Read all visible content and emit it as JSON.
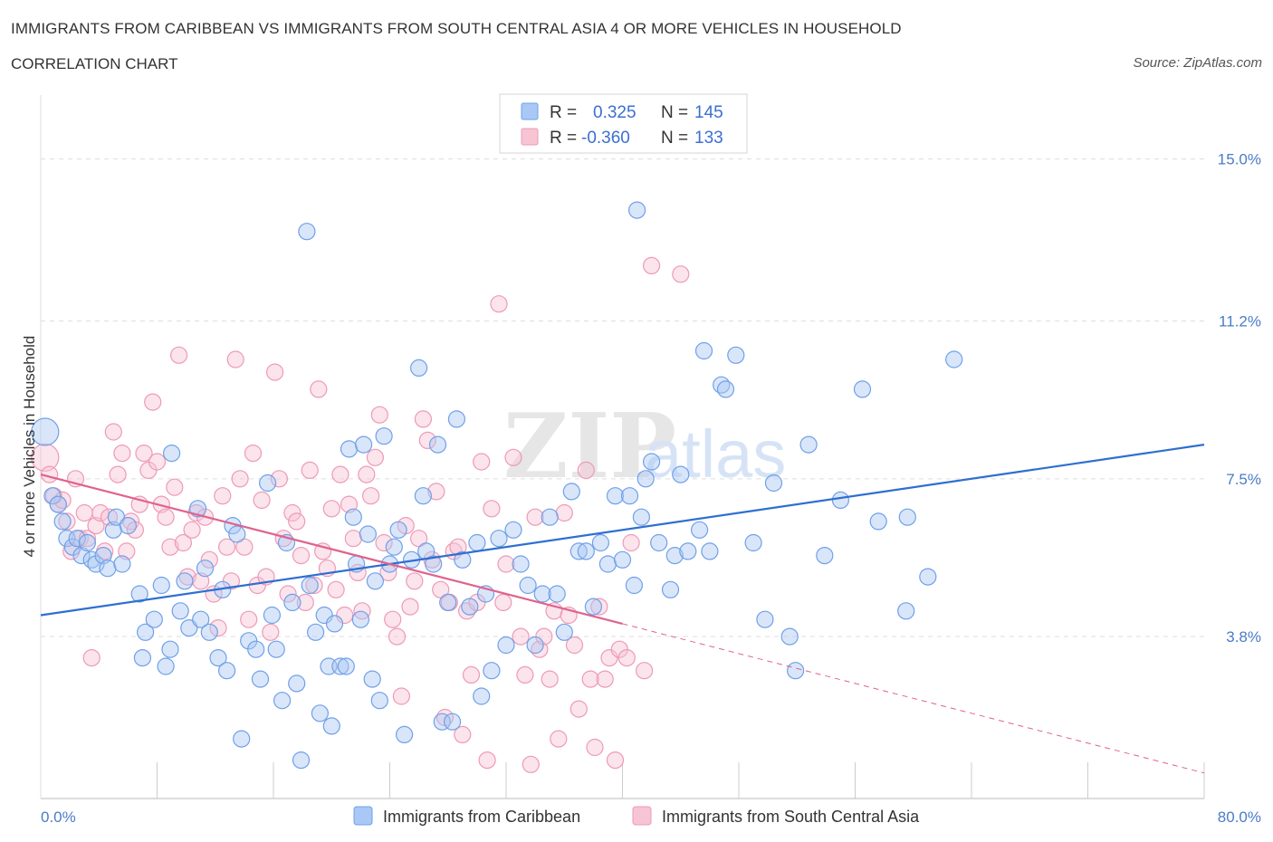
{
  "header": {
    "title": "IMMIGRANTS FROM CARIBBEAN VS IMMIGRANTS FROM SOUTH CENTRAL ASIA 4 OR MORE VEHICLES IN HOUSEHOLD",
    "subtitle": "CORRELATION CHART",
    "source": "Source: ZipAtlas.com"
  },
  "watermark": {
    "zip": "ZIP",
    "atlas": "atlas"
  },
  "legend": {
    "r_label": "R =",
    "n_label": "N =",
    "rows": [
      {
        "r": "0.325",
        "n": "145"
      },
      {
        "r": "-0.360",
        "n": "133"
      }
    ]
  },
  "colors": {
    "blue": "#6fa0e8",
    "blue_fill": "#aac8f5",
    "blue_line": "#2e6fd1",
    "pink": "#ee9ab5",
    "pink_fill": "#f7c4d4",
    "pink_line": "#e0628e",
    "grid": "#dddddd",
    "tick_text": "#4a7cc7"
  },
  "chart_data": {
    "type": "scatter",
    "title": "IMMIGRANTS FROM CARIBBEAN VS IMMIGRANTS FROM SOUTH CENTRAL ASIA 4 OR MORE VEHICLES IN HOUSEHOLD",
    "xlabel": "",
    "ylabel": "4 or more Vehicles in Household",
    "xlim": [
      0,
      80
    ],
    "ylim": [
      0,
      16.5
    ],
    "x_tick_labels": [
      "0.0%",
      "80.0%"
    ],
    "y_ticks": [
      3.8,
      7.5,
      11.2,
      15.0
    ],
    "y_tick_labels": [
      "3.8%",
      "7.5%",
      "11.2%",
      "15.0%"
    ],
    "grid": true,
    "legend_position": "top-center",
    "series": [
      {
        "name": "Immigrants from Caribbean",
        "color": "#6fa0e8",
        "r": 0.325,
        "n": 145,
        "trend": {
          "x0": 0,
          "y0": 4.3,
          "x1": 80,
          "y1": 8.3
        },
        "points": [
          [
            0.3,
            8.6
          ],
          [
            0.8,
            7.1
          ],
          [
            1.2,
            6.9
          ],
          [
            1.5,
            6.5
          ],
          [
            1.8,
            6.1
          ],
          [
            2.2,
            5.9
          ],
          [
            2.5,
            6.1
          ],
          [
            2.8,
            5.7
          ],
          [
            3.2,
            6.0
          ],
          [
            3.5,
            5.6
          ],
          [
            3.8,
            5.5
          ],
          [
            4.3,
            5.7
          ],
          [
            4.6,
            5.4
          ],
          [
            5.0,
            6.3
          ],
          [
            5.2,
            6.6
          ],
          [
            5.6,
            5.5
          ],
          [
            6.0,
            6.4
          ],
          [
            6.8,
            4.8
          ],
          [
            7.2,
            3.9
          ],
          [
            7.0,
            3.3
          ],
          [
            7.8,
            4.2
          ],
          [
            8.3,
            5.0
          ],
          [
            8.6,
            3.1
          ],
          [
            8.9,
            3.5
          ],
          [
            9.0,
            8.1
          ],
          [
            9.6,
            4.4
          ],
          [
            9.9,
            5.1
          ],
          [
            10.2,
            4.0
          ],
          [
            10.8,
            6.8
          ],
          [
            11.0,
            4.2
          ],
          [
            11.3,
            5.4
          ],
          [
            11.6,
            3.9
          ],
          [
            12.2,
            3.3
          ],
          [
            12.5,
            4.9
          ],
          [
            12.8,
            3.0
          ],
          [
            13.2,
            6.4
          ],
          [
            13.5,
            6.2
          ],
          [
            13.8,
            1.4
          ],
          [
            14.3,
            3.7
          ],
          [
            14.8,
            3.5
          ],
          [
            15.1,
            2.8
          ],
          [
            15.6,
            7.4
          ],
          [
            15.9,
            4.3
          ],
          [
            16.2,
            3.5
          ],
          [
            16.6,
            2.3
          ],
          [
            16.9,
            6.0
          ],
          [
            17.3,
            4.6
          ],
          [
            17.6,
            2.7
          ],
          [
            17.9,
            0.9
          ],
          [
            18.3,
            13.3
          ],
          [
            18.5,
            5.0
          ],
          [
            18.9,
            3.9
          ],
          [
            19.2,
            2.0
          ],
          [
            19.5,
            4.3
          ],
          [
            19.8,
            3.1
          ],
          [
            20.0,
            1.7
          ],
          [
            20.2,
            4.1
          ],
          [
            20.6,
            3.1
          ],
          [
            21.0,
            3.1
          ],
          [
            21.2,
            8.2
          ],
          [
            21.5,
            6.6
          ],
          [
            21.7,
            5.5
          ],
          [
            22.0,
            4.2
          ],
          [
            22.2,
            8.3
          ],
          [
            22.5,
            6.2
          ],
          [
            22.8,
            2.8
          ],
          [
            23.0,
            5.1
          ],
          [
            23.3,
            2.3
          ],
          [
            23.6,
            8.5
          ],
          [
            24.0,
            5.5
          ],
          [
            24.3,
            5.9
          ],
          [
            24.6,
            6.3
          ],
          [
            25.0,
            1.5
          ],
          [
            25.5,
            5.6
          ],
          [
            26.0,
            10.1
          ],
          [
            26.3,
            7.1
          ],
          [
            26.5,
            5.8
          ],
          [
            27.0,
            5.5
          ],
          [
            27.3,
            8.3
          ],
          [
            27.6,
            1.8
          ],
          [
            28.0,
            4.6
          ],
          [
            28.3,
            1.8
          ],
          [
            28.6,
            8.9
          ],
          [
            29.0,
            5.6
          ],
          [
            29.5,
            4.5
          ],
          [
            30.0,
            6.0
          ],
          [
            30.3,
            2.4
          ],
          [
            30.6,
            4.8
          ],
          [
            31.0,
            3.0
          ],
          [
            31.5,
            6.1
          ],
          [
            32.0,
            3.6
          ],
          [
            32.5,
            6.3
          ],
          [
            33.0,
            5.5
          ],
          [
            33.5,
            5.0
          ],
          [
            34.0,
            3.6
          ],
          [
            34.5,
            4.8
          ],
          [
            35.0,
            6.6
          ],
          [
            35.5,
            4.8
          ],
          [
            36.0,
            3.9
          ],
          [
            36.5,
            7.2
          ],
          [
            37.0,
            5.8
          ],
          [
            37.5,
            5.8
          ],
          [
            38.0,
            4.5
          ],
          [
            38.5,
            6.0
          ],
          [
            39.0,
            5.5
          ],
          [
            39.5,
            7.1
          ],
          [
            40.0,
            5.6
          ],
          [
            40.5,
            7.1
          ],
          [
            40.8,
            5.0
          ],
          [
            41.0,
            13.8
          ],
          [
            41.3,
            6.6
          ],
          [
            41.6,
            7.5
          ],
          [
            42.0,
            7.9
          ],
          [
            42.5,
            6.0
          ],
          [
            43.3,
            4.9
          ],
          [
            43.6,
            5.7
          ],
          [
            44.0,
            7.6
          ],
          [
            44.5,
            5.8
          ],
          [
            45.3,
            6.3
          ],
          [
            45.6,
            10.5
          ],
          [
            46.0,
            5.8
          ],
          [
            46.8,
            9.7
          ],
          [
            47.1,
            9.6
          ],
          [
            47.8,
            10.4
          ],
          [
            49.0,
            6.0
          ],
          [
            49.8,
            4.2
          ],
          [
            50.4,
            7.4
          ],
          [
            51.5,
            3.8
          ],
          [
            51.9,
            3.0
          ],
          [
            52.8,
            8.3
          ],
          [
            53.9,
            5.7
          ],
          [
            55.0,
            7.0
          ],
          [
            56.5,
            9.6
          ],
          [
            57.6,
            6.5
          ],
          [
            59.6,
            6.6
          ],
          [
            59.5,
            4.4
          ],
          [
            61.0,
            5.2
          ],
          [
            62.8,
            10.3
          ]
        ]
      },
      {
        "name": "Immigrants from South Central Asia",
        "color": "#ee9ab5",
        "r": -0.36,
        "n": 133,
        "trend": {
          "x0": 0,
          "y0": 7.6,
          "x1": 40,
          "y1": 4.1,
          "dashed_to_x": 80,
          "dashed_to_y": 0.6
        },
        "points": [
          [
            0.3,
            8.0
          ],
          [
            0.6,
            7.6
          ],
          [
            0.9,
            7.1
          ],
          [
            1.2,
            6.9
          ],
          [
            1.5,
            7.0
          ],
          [
            1.8,
            6.5
          ],
          [
            2.1,
            5.8
          ],
          [
            2.4,
            7.5
          ],
          [
            2.7,
            6.1
          ],
          [
            3.0,
            6.7
          ],
          [
            3.2,
            6.1
          ],
          [
            3.5,
            3.3
          ],
          [
            3.8,
            6.4
          ],
          [
            4.1,
            6.7
          ],
          [
            4.4,
            5.8
          ],
          [
            4.7,
            6.6
          ],
          [
            5.0,
            8.6
          ],
          [
            5.3,
            7.6
          ],
          [
            5.6,
            8.1
          ],
          [
            5.9,
            5.8
          ],
          [
            6.2,
            6.5
          ],
          [
            6.5,
            6.3
          ],
          [
            6.8,
            6.9
          ],
          [
            7.1,
            8.1
          ],
          [
            7.4,
            7.7
          ],
          [
            7.7,
            9.3
          ],
          [
            8.0,
            7.9
          ],
          [
            8.3,
            6.9
          ],
          [
            8.6,
            6.6
          ],
          [
            8.9,
            5.9
          ],
          [
            9.2,
            7.3
          ],
          [
            9.5,
            10.4
          ],
          [
            9.8,
            6.0
          ],
          [
            10.1,
            5.2
          ],
          [
            10.4,
            6.3
          ],
          [
            10.7,
            6.7
          ],
          [
            11.0,
            5.1
          ],
          [
            11.3,
            6.6
          ],
          [
            11.6,
            5.6
          ],
          [
            11.9,
            4.8
          ],
          [
            12.2,
            4.0
          ],
          [
            12.5,
            7.1
          ],
          [
            12.8,
            5.9
          ],
          [
            13.1,
            5.1
          ],
          [
            13.4,
            10.3
          ],
          [
            13.7,
            7.5
          ],
          [
            14.0,
            5.9
          ],
          [
            14.3,
            4.2
          ],
          [
            14.6,
            8.1
          ],
          [
            14.9,
            5.0
          ],
          [
            15.2,
            7.0
          ],
          [
            15.5,
            5.2
          ],
          [
            15.8,
            3.9
          ],
          [
            16.1,
            10.0
          ],
          [
            16.4,
            7.5
          ],
          [
            16.7,
            6.1
          ],
          [
            17.0,
            4.8
          ],
          [
            17.3,
            6.7
          ],
          [
            17.6,
            6.5
          ],
          [
            17.9,
            5.7
          ],
          [
            18.2,
            4.6
          ],
          [
            18.5,
            7.7
          ],
          [
            18.8,
            5.0
          ],
          [
            19.1,
            9.6
          ],
          [
            19.4,
            5.8
          ],
          [
            19.7,
            5.4
          ],
          [
            20.0,
            6.8
          ],
          [
            20.3,
            4.9
          ],
          [
            20.6,
            7.6
          ],
          [
            20.9,
            4.3
          ],
          [
            21.2,
            6.9
          ],
          [
            21.5,
            6.1
          ],
          [
            21.8,
            5.3
          ],
          [
            22.1,
            4.4
          ],
          [
            22.4,
            7.6
          ],
          [
            22.7,
            7.1
          ],
          [
            23.0,
            8.0
          ],
          [
            23.3,
            9.0
          ],
          [
            23.6,
            6.0
          ],
          [
            23.9,
            5.3
          ],
          [
            24.2,
            4.2
          ],
          [
            24.5,
            3.8
          ],
          [
            24.8,
            2.4
          ],
          [
            25.1,
            6.4
          ],
          [
            25.4,
            4.5
          ],
          [
            25.7,
            5.1
          ],
          [
            26.0,
            6.1
          ],
          [
            26.3,
            8.9
          ],
          [
            26.6,
            8.4
          ],
          [
            26.9,
            5.6
          ],
          [
            27.2,
            7.2
          ],
          [
            27.5,
            4.9
          ],
          [
            27.8,
            1.9
          ],
          [
            28.1,
            4.6
          ],
          [
            28.4,
            5.8
          ],
          [
            28.7,
            5.9
          ],
          [
            29.0,
            1.5
          ],
          [
            29.3,
            4.4
          ],
          [
            29.6,
            2.9
          ],
          [
            30.0,
            4.6
          ],
          [
            30.3,
            7.9
          ],
          [
            30.7,
            0.9
          ],
          [
            31.0,
            6.8
          ],
          [
            31.5,
            11.6
          ],
          [
            31.8,
            4.6
          ],
          [
            32.0,
            5.5
          ],
          [
            32.5,
            8.0
          ],
          [
            33.0,
            3.8
          ],
          [
            33.3,
            2.9
          ],
          [
            33.7,
            0.8
          ],
          [
            34.0,
            6.6
          ],
          [
            34.3,
            3.5
          ],
          [
            34.6,
            3.8
          ],
          [
            35.0,
            2.8
          ],
          [
            35.3,
            4.4
          ],
          [
            35.6,
            1.4
          ],
          [
            36.0,
            6.7
          ],
          [
            36.3,
            4.3
          ],
          [
            36.7,
            3.6
          ],
          [
            37.0,
            2.1
          ],
          [
            37.5,
            7.7
          ],
          [
            37.8,
            2.8
          ],
          [
            38.1,
            1.2
          ],
          [
            38.4,
            4.5
          ],
          [
            38.8,
            2.8
          ],
          [
            39.1,
            3.3
          ],
          [
            39.5,
            0.9
          ],
          [
            39.8,
            3.5
          ],
          [
            40.3,
            3.3
          ],
          [
            40.6,
            6.0
          ],
          [
            41.5,
            3.0
          ],
          [
            42.0,
            12.5
          ],
          [
            44.0,
            12.3
          ]
        ]
      }
    ]
  }
}
